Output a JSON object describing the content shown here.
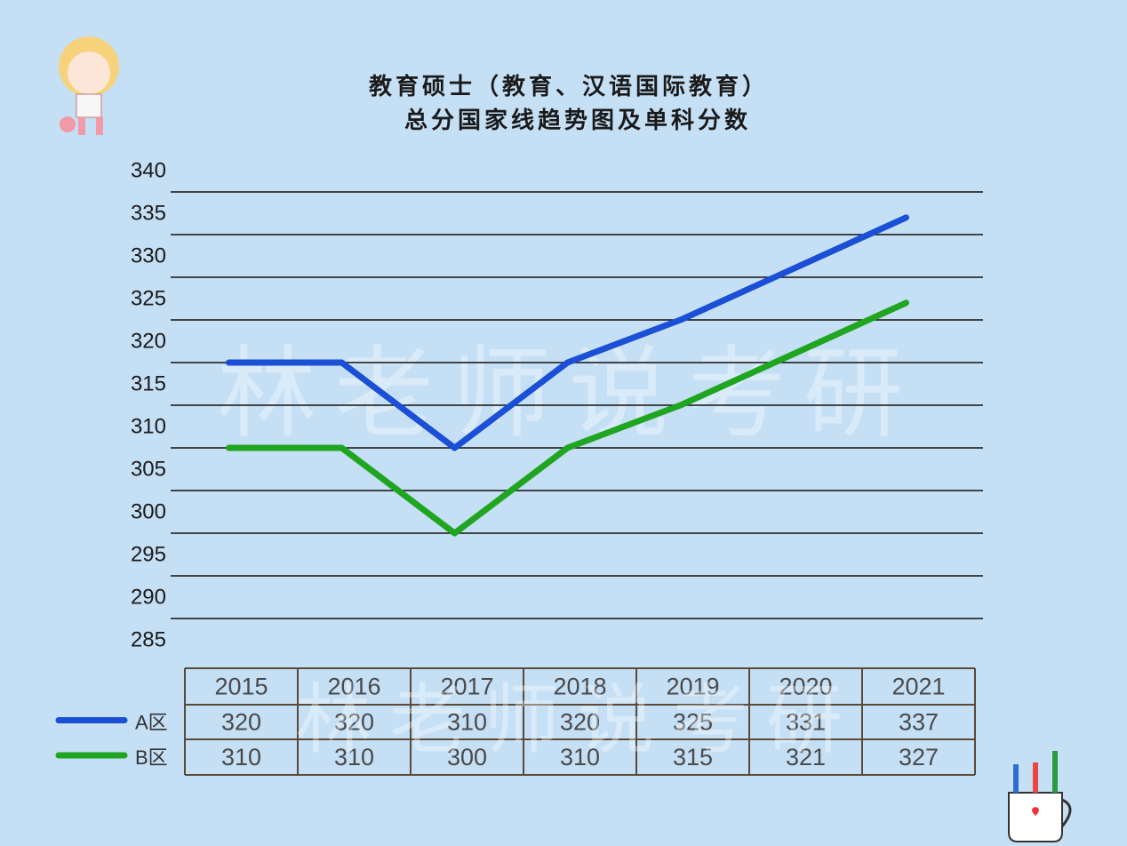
{
  "chart_data": {
    "type": "line",
    "title": "教育硕士（教育、汉语国际教育）",
    "subtitle": "总分国家线趋势图及单科分数",
    "watermark": "林老师说考研",
    "categories": [
      "2015",
      "2016",
      "2017",
      "2018",
      "2019",
      "2020",
      "2021"
    ],
    "series": [
      {
        "name": "A区",
        "color": "#1a4fd6",
        "values": [
          320,
          320,
          310,
          320,
          325,
          331,
          337
        ]
      },
      {
        "name": "B区",
        "color": "#1fa51f",
        "values": [
          310,
          310,
          300,
          310,
          315,
          321,
          327
        ]
      }
    ],
    "ylim": [
      285,
      340
    ],
    "yticks": [
      340,
      335,
      330,
      325,
      320,
      315,
      310,
      305,
      300,
      295,
      290,
      285
    ],
    "grid": true
  }
}
